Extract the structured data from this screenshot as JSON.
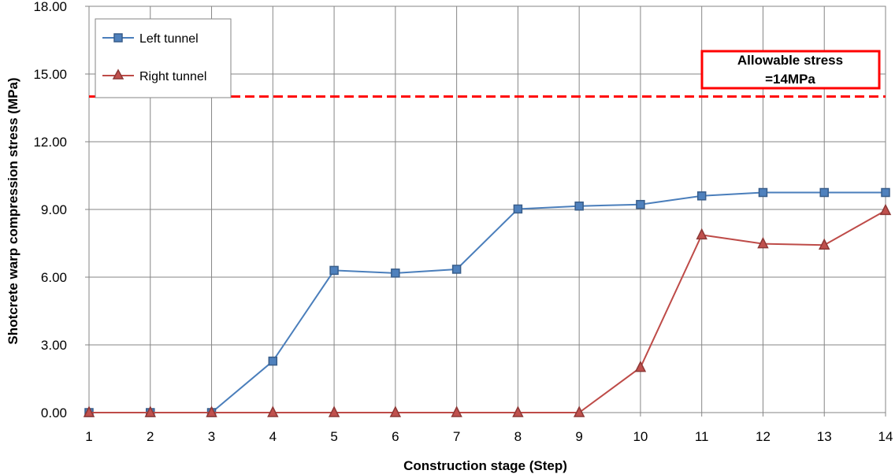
{
  "chart_data": {
    "type": "line",
    "title": "",
    "xlabel": "Construction stage (Step)",
    "ylabel": "Shotcrete warp compression stress (MPa)",
    "categories": [
      "1",
      "2",
      "3",
      "4",
      "5",
      "6",
      "7",
      "8",
      "9",
      "10",
      "11",
      "12",
      "13",
      "14"
    ],
    "ylim": [
      0,
      18
    ],
    "yticks": [
      "0.00",
      "3.00",
      "6.00",
      "9.00",
      "12.00",
      "15.00",
      "18.00"
    ],
    "grid": true,
    "legend_position": "top-left",
    "series": [
      {
        "name": "Left tunnel",
        "marker": "square",
        "color": "#4a7ebb",
        "marker_fill": "#4f81bd",
        "values": [
          0,
          0,
          0,
          2.28,
          6.3,
          6.18,
          6.35,
          9.02,
          9.15,
          9.22,
          9.6,
          9.75,
          9.75,
          9.75
        ]
      },
      {
        "name": "Right tunnel",
        "marker": "triangle",
        "color": "#be4b48",
        "marker_fill": "#c0504d",
        "values": [
          0,
          0,
          0,
          0,
          0,
          0,
          0,
          0,
          0,
          2.0,
          7.87,
          7.48,
          7.42,
          8.95
        ]
      }
    ],
    "reference_line": {
      "value": 14,
      "style": "dashed",
      "color": "#ff0000",
      "label_lines": [
        "Allowable stress",
        "=14MPa"
      ]
    }
  }
}
